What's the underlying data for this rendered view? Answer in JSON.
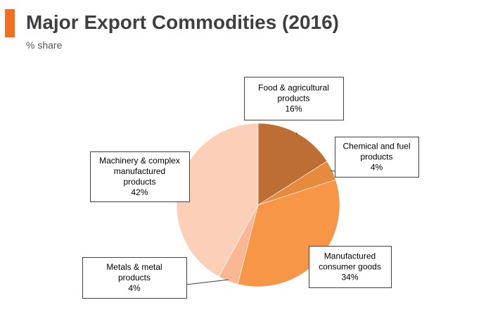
{
  "header": {
    "title": "Major Export Commodities (2016)",
    "subtitle": "% share"
  },
  "colors": {
    "accent": "#f26f21",
    "title_text": "#3f3f3f"
  },
  "chart_data": {
    "type": "pie",
    "title": "Major Export Commodities (2016)",
    "subtitle": "% share",
    "start_angle_deg": 0,
    "direction": "clockwise",
    "legend": "none (callout labels)",
    "slices": [
      {
        "label_lines": [
          "Food & agricultural",
          "products"
        ],
        "value": 16,
        "value_label": "16%",
        "color": "#bd6e33"
      },
      {
        "label_lines": [
          "Chemical and fuel",
          "products"
        ],
        "value": 4,
        "value_label": "4%",
        "color": "#e68a3e"
      },
      {
        "label_lines": [
          "Manufactured",
          "consumer goods"
        ],
        "value": 34,
        "value_label": "34%",
        "color": "#f79646"
      },
      {
        "label_lines": [
          "Metals & metal",
          "products"
        ],
        "value": 4,
        "value_label": "4%",
        "color": "#f9b893"
      },
      {
        "label_lines": [
          "Machinery & complex",
          "manufactured",
          "products"
        ],
        "value": 42,
        "value_label": "42%",
        "color": "#fbcfb8"
      }
    ]
  }
}
